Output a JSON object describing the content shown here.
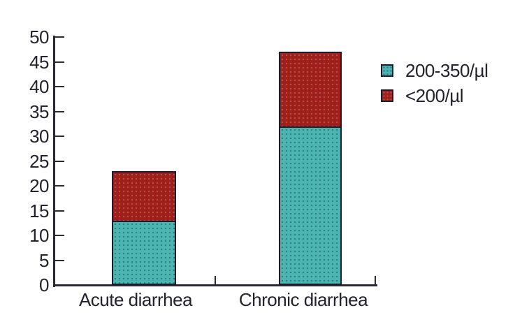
{
  "figure": {
    "kind": "stacked-bar-figure",
    "background": "#ffffff"
  },
  "colors": {
    "axis": "#2a2a35",
    "text": "#232330",
    "bar_border": "#1e1b2e",
    "background": "#ffffff"
  },
  "chart_data": {
    "type": "bar",
    "stacked": true,
    "title": "",
    "xlabel": "",
    "ylabel": "",
    "categories": [
      "Acute diarrhea",
      "Chronic diarrhea"
    ],
    "series": [
      {
        "name": "200-350/µl",
        "color": "#4cb5b2",
        "dot_color": "#2f7f7d",
        "values": [
          13,
          32
        ]
      },
      {
        "name": "<200/µl",
        "color": "#9e1f1c",
        "dot_color": "#b5523a",
        "values": [
          10,
          15
        ]
      }
    ],
    "totals": [
      23,
      47
    ],
    "ylim": [
      0,
      50
    ],
    "ytick_step": 5,
    "yticks": [
      0,
      5,
      10,
      15,
      20,
      25,
      30,
      35,
      40,
      45,
      50
    ],
    "grid": false,
    "legend_position": "right-top"
  }
}
